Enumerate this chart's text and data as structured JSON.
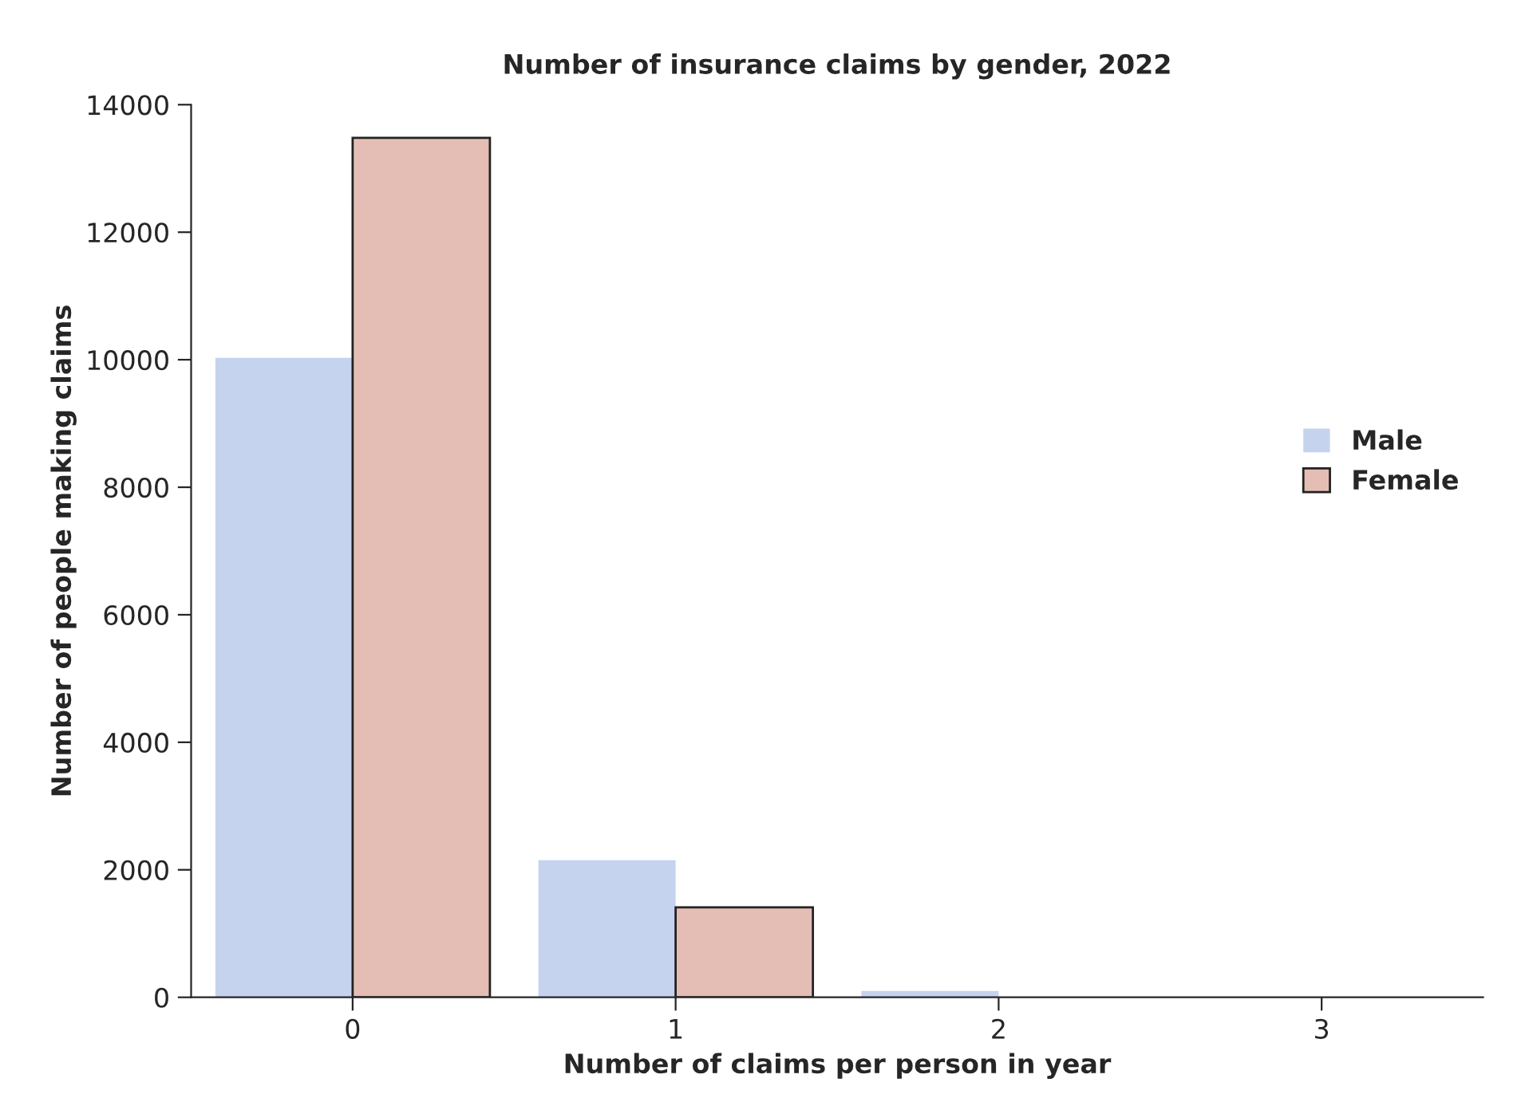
{
  "chart_data": {
    "type": "bar",
    "title": "Number of insurance claims by gender, 2022",
    "xlabel": "Number of claims per person in year",
    "ylabel": "Number of people making claims",
    "categories": [
      "0",
      "1",
      "2",
      "3"
    ],
    "series": [
      {
        "name": "Male",
        "color": "#c5d3ee",
        "values": [
          10030,
          2150,
          100,
          0
        ]
      },
      {
        "name": "Female",
        "color": "#e4beb5",
        "values": [
          13480,
          1410,
          0,
          0
        ]
      }
    ],
    "ylim": [
      0,
      14000
    ],
    "yticks": [
      0,
      2000,
      4000,
      6000,
      8000,
      10000,
      12000,
      14000
    ],
    "grid": false,
    "legend": "right"
  }
}
